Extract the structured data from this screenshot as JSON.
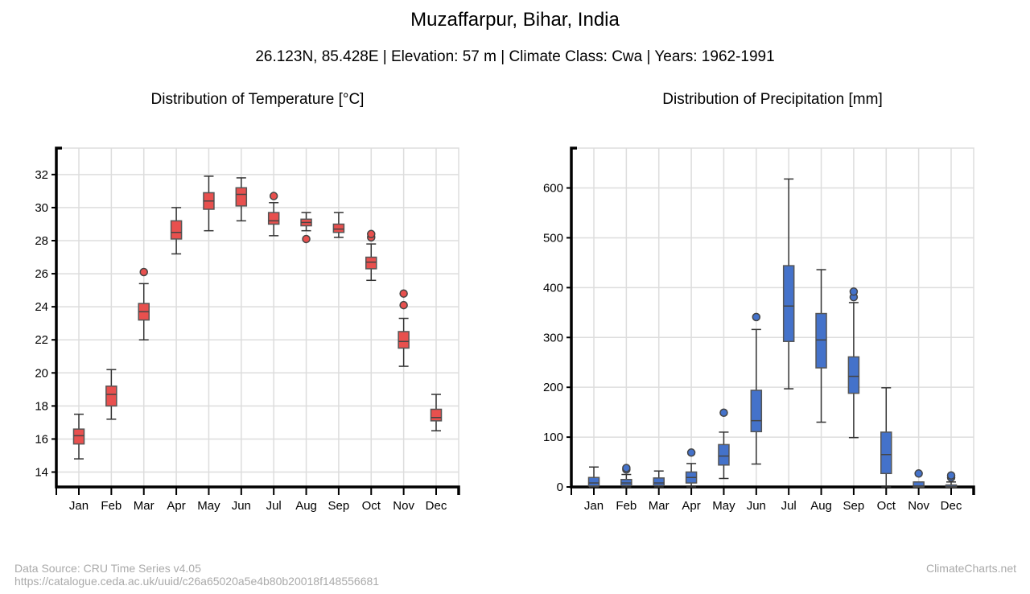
{
  "header": {
    "title": "Muzaffarpur, Bihar, India",
    "subtitle": "26.123N, 85.428E | Elevation: 57 m | Climate Class: Cwa | Years: 1962-1991"
  },
  "footer": {
    "source": "Data Source: CRU Time Series v4.05",
    "url": "https://catalogue.ceda.ac.uk/uuid/c26a65020a5e4b80b20018f148556681",
    "brand": "ClimateCharts.net"
  },
  "chart_data": [
    {
      "type": "box",
      "title": "Distribution of Temperature [°C]",
      "color": "#e8504e",
      "categories": [
        "Jan",
        "Feb",
        "Mar",
        "Apr",
        "May",
        "Jun",
        "Jul",
        "Aug",
        "Sep",
        "Oct",
        "Nov",
        "Dec"
      ],
      "ylim": [
        13.1,
        33.6
      ],
      "yticks": [
        14,
        16,
        18,
        20,
        22,
        24,
        26,
        28,
        30,
        32
      ],
      "grid": true,
      "boxes": [
        {
          "low": 14.8,
          "q1": 15.7,
          "median": 16.2,
          "q3": 16.6,
          "high": 17.5,
          "outliers": []
        },
        {
          "low": 17.2,
          "q1": 18.0,
          "median": 18.7,
          "q3": 19.2,
          "high": 20.2,
          "outliers": []
        },
        {
          "low": 22.0,
          "q1": 23.2,
          "median": 23.7,
          "q3": 24.2,
          "high": 25.4,
          "outliers": [
            26.1
          ]
        },
        {
          "low": 27.2,
          "q1": 28.1,
          "median": 28.5,
          "q3": 29.2,
          "high": 30.0,
          "outliers": []
        },
        {
          "low": 28.6,
          "q1": 29.9,
          "median": 30.4,
          "q3": 30.9,
          "high": 31.9,
          "outliers": []
        },
        {
          "low": 29.2,
          "q1": 30.1,
          "median": 30.8,
          "q3": 31.2,
          "high": 31.8,
          "outliers": []
        },
        {
          "low": 28.3,
          "q1": 29.0,
          "median": 29.2,
          "q3": 29.7,
          "high": 30.3,
          "outliers": [
            30.7
          ]
        },
        {
          "low": 28.6,
          "q1": 28.9,
          "median": 29.1,
          "q3": 29.3,
          "high": 29.7,
          "outliers": [
            28.1
          ]
        },
        {
          "low": 28.2,
          "q1": 28.5,
          "median": 28.7,
          "q3": 29.0,
          "high": 29.7,
          "outliers": []
        },
        {
          "low": 25.6,
          "q1": 26.3,
          "median": 26.7,
          "q3": 27.0,
          "high": 27.8,
          "outliers": [
            28.2,
            28.4
          ]
        },
        {
          "low": 20.4,
          "q1": 21.5,
          "median": 21.9,
          "q3": 22.5,
          "high": 23.3,
          "outliers": [
            24.1,
            24.8
          ]
        },
        {
          "low": 16.5,
          "q1": 17.1,
          "median": 17.3,
          "q3": 17.8,
          "high": 18.7,
          "outliers": []
        }
      ]
    },
    {
      "type": "box",
      "title": "Distribution of Precipitation [mm]",
      "color": "#4472ca",
      "categories": [
        "Jan",
        "Feb",
        "Mar",
        "Apr",
        "May",
        "Jun",
        "Jul",
        "Aug",
        "Sep",
        "Oct",
        "Nov",
        "Dec"
      ],
      "ylim": [
        0,
        680
      ],
      "yticks": [
        0,
        100,
        200,
        300,
        400,
        500,
        600
      ],
      "grid": true,
      "boxes": [
        {
          "low": 0,
          "q1": 2,
          "median": 8,
          "q3": 19,
          "high": 40,
          "outliers": []
        },
        {
          "low": 0,
          "q1": 3,
          "median": 8,
          "q3": 15,
          "high": 25,
          "outliers": [
            35,
            38
          ]
        },
        {
          "low": 0,
          "q1": 3,
          "median": 8,
          "q3": 18,
          "high": 32,
          "outliers": []
        },
        {
          "low": 0,
          "q1": 8,
          "median": 19,
          "q3": 30,
          "high": 47,
          "outliers": [
            69
          ]
        },
        {
          "low": 17,
          "q1": 44,
          "median": 62,
          "q3": 85,
          "high": 110,
          "outliers": [
            149
          ]
        },
        {
          "low": 46,
          "q1": 111,
          "median": 133,
          "q3": 194,
          "high": 316,
          "outliers": [
            341
          ]
        },
        {
          "low": 197,
          "q1": 292,
          "median": 363,
          "q3": 444,
          "high": 618,
          "outliers": []
        },
        {
          "low": 130,
          "q1": 239,
          "median": 295,
          "q3": 348,
          "high": 436,
          "outliers": []
        },
        {
          "low": 99,
          "q1": 188,
          "median": 222,
          "q3": 261,
          "high": 370,
          "outliers": [
            381,
            392
          ]
        },
        {
          "low": 0,
          "q1": 27,
          "median": 65,
          "q3": 110,
          "high": 199,
          "outliers": []
        },
        {
          "low": 0,
          "q1": 0,
          "median": 2,
          "q3": 10,
          "high": 10,
          "outliers": [
            27
          ]
        },
        {
          "low": 0,
          "q1": 0,
          "median": 1,
          "q3": 4,
          "high": 10,
          "outliers": [
            19,
            23
          ]
        }
      ]
    }
  ]
}
